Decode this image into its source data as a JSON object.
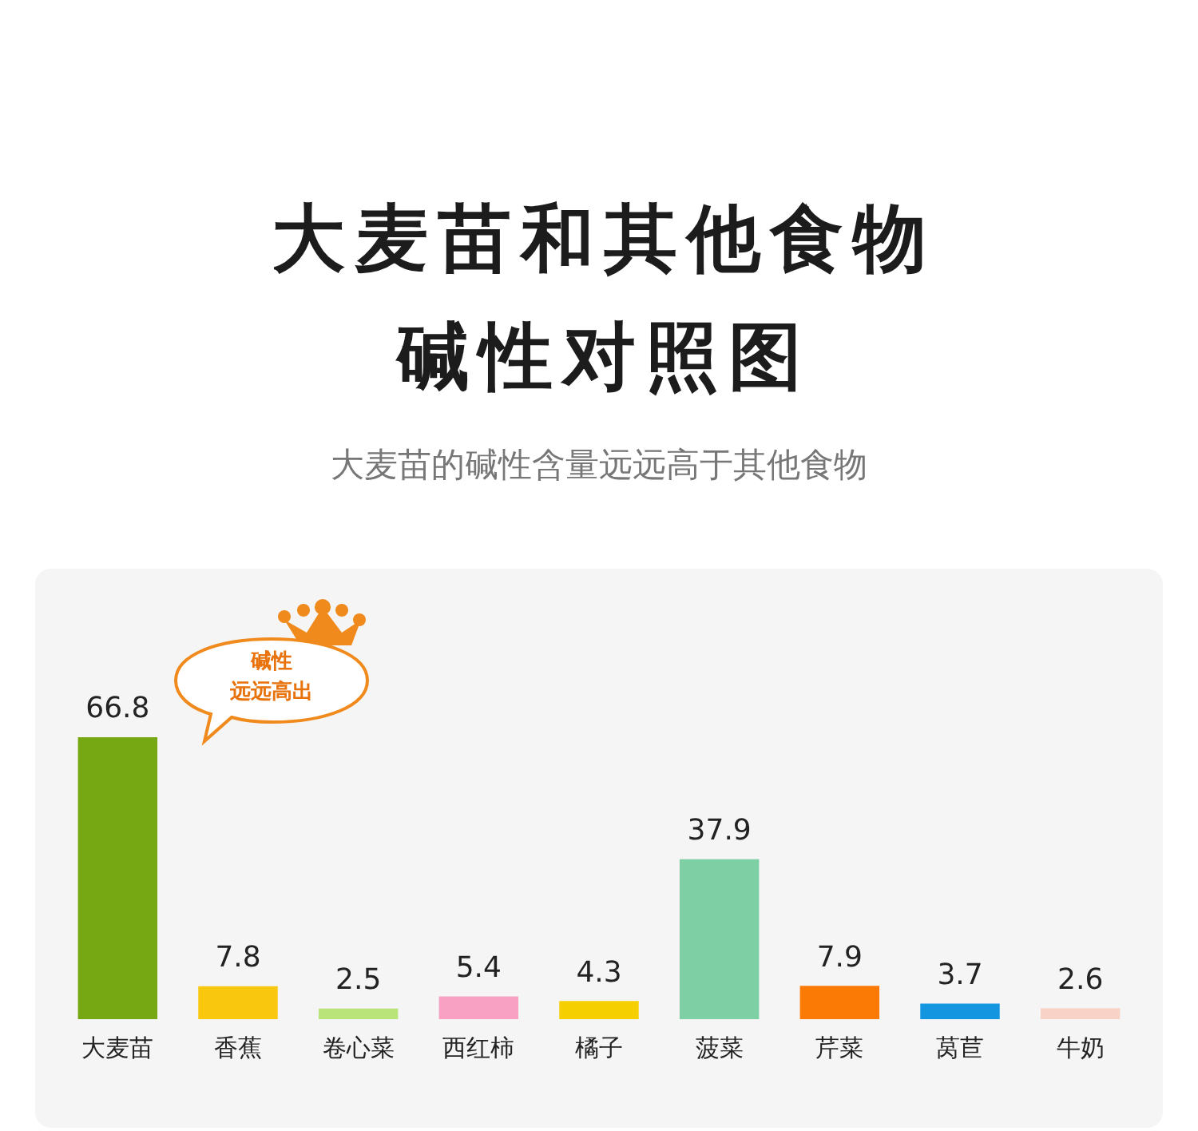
{
  "chart_data": {
    "type": "bar",
    "title": "大麦苗和其他食物碱性对照图",
    "subtitle": "大麦苗的碱性含量远远高于其他食物",
    "categories": [
      "大麦苗",
      "香蕉",
      "卷心菜",
      "西红柿",
      "橘子",
      "菠菜",
      "芹菜",
      "莴苣",
      "牛奶"
    ],
    "values": [
      66.8,
      7.8,
      2.5,
      5.4,
      4.3,
      37.9,
      7.9,
      3.7,
      2.6
    ],
    "colors": [
      "#76a813",
      "#f9c80e",
      "#b8e47a",
      "#f9a1c3",
      "#f5cf00",
      "#7ecfa3",
      "#fb7a05",
      "#1395e0",
      "#f8d2c6"
    ],
    "data_labels": true,
    "grid": false,
    "legend": false,
    "annotations": [
      "碱性",
      "远远高出"
    ]
  }
}
